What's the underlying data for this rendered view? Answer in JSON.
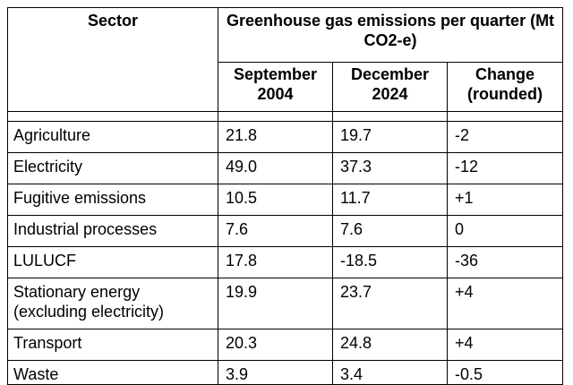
{
  "table": {
    "header": {
      "sector": "Sector",
      "group": "Greenhouse gas emissions per quarter (Mt CO2-e)",
      "columns": [
        "September 2004",
        "December 2024",
        "Change (rounded)"
      ]
    },
    "rows": [
      {
        "sector": "Agriculture",
        "sep2004": "21.8",
        "dec2024": "19.7",
        "change": "-2"
      },
      {
        "sector": "Electricity",
        "sep2004": "49.0",
        "dec2024": "37.3",
        "change": "-12"
      },
      {
        "sector": "Fugitive emissions",
        "sep2004": "10.5",
        "dec2024": "11.7",
        "change": "+1"
      },
      {
        "sector": "Industrial processes",
        "sep2004": "7.6",
        "dec2024": "7.6",
        "change": "0"
      },
      {
        "sector": "LULUCF",
        "sep2004": "17.8",
        "dec2024": "-18.5",
        "change": "-36"
      },
      {
        "sector": "Stationary energy (excluding electricity)",
        "sep2004": "19.9",
        "dec2024": "23.7",
        "change": "+4"
      },
      {
        "sector": "Transport",
        "sep2004": "20.3",
        "dec2024": "24.8",
        "change": "+4"
      },
      {
        "sector": "Waste",
        "sep2004": "3.9",
        "dec2024": "3.4",
        "change": "-0.5"
      }
    ]
  }
}
